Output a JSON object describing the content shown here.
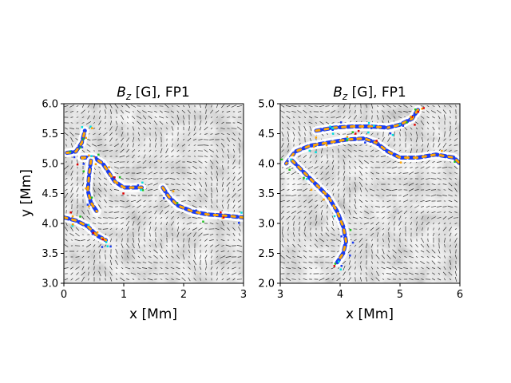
{
  "chart_data": [
    {
      "type": "heatmap",
      "title": "B_z [G], FP1",
      "title_parts": {
        "symbol": "B",
        "subscript": "z",
        "rest": " [G], FP1"
      },
      "xlabel": "x [Mm]",
      "ylabel": "y [Mm]",
      "xlim": [
        0,
        3
      ],
      "ylim": [
        3,
        6
      ],
      "xticks": [
        0,
        1,
        2,
        3
      ],
      "yticks": [
        3.0,
        3.5,
        4.0,
        4.5,
        5.0,
        5.5,
        6.0
      ],
      "xtick_labels": [
        "0",
        "1",
        "2",
        "3"
      ],
      "ytick_labels": [
        "3.0",
        "3.5",
        "4.0",
        "4.5",
        "5.0",
        "5.5",
        "6.0"
      ],
      "overlay": "velocity arrows",
      "grid": false,
      "strong_field_paths": [
        [
          [
            0.05,
            5.18
          ],
          [
            0.2,
            5.2
          ],
          [
            0.3,
            5.35
          ],
          [
            0.35,
            5.55
          ]
        ],
        [
          [
            0.3,
            5.1
          ],
          [
            0.5,
            5.1
          ],
          [
            0.65,
            5.0
          ],
          [
            0.75,
            4.85
          ],
          [
            0.85,
            4.7
          ],
          [
            1.0,
            4.6
          ],
          [
            1.3,
            4.6
          ]
        ],
        [
          [
            0.45,
            5.05
          ],
          [
            0.42,
            4.8
          ],
          [
            0.4,
            4.55
          ],
          [
            0.45,
            4.35
          ],
          [
            0.55,
            4.2
          ]
        ],
        [
          [
            0.0,
            4.1
          ],
          [
            0.2,
            4.05
          ],
          [
            0.4,
            3.95
          ],
          [
            0.55,
            3.8
          ],
          [
            0.7,
            3.72
          ]
        ],
        [
          [
            1.65,
            4.6
          ],
          [
            1.75,
            4.45
          ],
          [
            1.9,
            4.3
          ],
          [
            2.15,
            4.2
          ],
          [
            2.4,
            4.15
          ],
          [
            2.7,
            4.13
          ],
          [
            3.0,
            4.1
          ]
        ]
      ]
    },
    {
      "type": "heatmap",
      "title": "B_z [G], FP1",
      "title_parts": {
        "symbol": "B",
        "subscript": "z",
        "rest": " [G], FP1"
      },
      "xlabel": "x [Mm]",
      "ylabel": "",
      "xlim": [
        3,
        6
      ],
      "ylim": [
        2,
        5
      ],
      "xticks": [
        3,
        4,
        5,
        6
      ],
      "yticks": [
        2.0,
        2.5,
        3.0,
        3.5,
        4.0,
        4.5,
        5.0
      ],
      "xtick_labels": [
        "3",
        "4",
        "5",
        "6"
      ],
      "ytick_labels": [
        "2.0",
        "2.5",
        "3.0",
        "3.5",
        "4.0",
        "4.5",
        "5.0"
      ],
      "overlay": "velocity arrows",
      "grid": false,
      "strong_field_paths": [
        [
          [
            3.6,
            4.55
          ],
          [
            3.9,
            4.6
          ],
          [
            4.2,
            4.62
          ],
          [
            4.5,
            4.62
          ],
          [
            4.8,
            4.6
          ],
          [
            5.0,
            4.65
          ],
          [
            5.2,
            4.75
          ],
          [
            5.3,
            4.9
          ]
        ],
        [
          [
            3.1,
            4.0
          ],
          [
            3.25,
            4.2
          ],
          [
            3.5,
            4.3
          ],
          [
            3.8,
            4.35
          ],
          [
            4.1,
            4.4
          ],
          [
            4.4,
            4.42
          ],
          [
            4.6,
            4.35
          ],
          [
            4.8,
            4.2
          ],
          [
            5.0,
            4.1
          ],
          [
            5.3,
            4.1
          ],
          [
            5.6,
            4.15
          ],
          [
            5.9,
            4.1
          ],
          [
            6.0,
            4.0
          ]
        ],
        [
          [
            3.2,
            4.05
          ],
          [
            3.4,
            3.85
          ],
          [
            3.6,
            3.65
          ],
          [
            3.8,
            3.45
          ],
          [
            3.95,
            3.2
          ],
          [
            4.05,
            2.95
          ],
          [
            4.1,
            2.7
          ],
          [
            4.05,
            2.5
          ],
          [
            3.95,
            2.35
          ]
        ]
      ]
    }
  ]
}
